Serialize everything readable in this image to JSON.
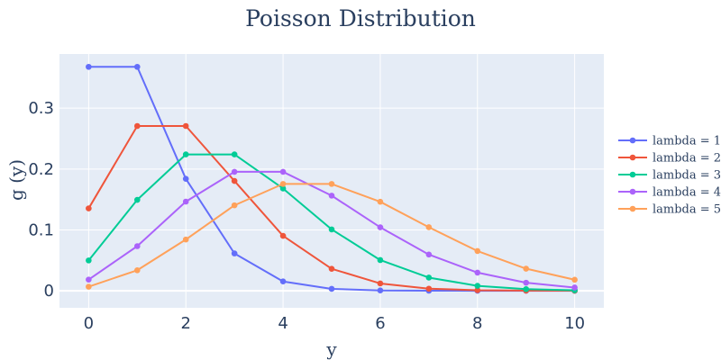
{
  "chart_data": {
    "type": "line",
    "title": "Poisson Distribution",
    "xlabel": "y",
    "ylabel": "g (y)",
    "x": [
      0,
      1,
      2,
      3,
      4,
      5,
      6,
      7,
      8,
      9,
      10
    ],
    "xlim": [
      -0.6,
      10.6
    ],
    "ylim": [
      -0.028,
      0.389
    ],
    "xticks": [
      0,
      2,
      4,
      6,
      8,
      10
    ],
    "yticks": [
      0,
      0.1,
      0.2,
      0.3
    ],
    "ytick_labels": [
      "0",
      "0.1",
      "0.2",
      "0.3"
    ],
    "grid": true,
    "legend_position": "right",
    "background": "#e5ecf6",
    "series": [
      {
        "name": "lambda = 1",
        "color": "#636efa",
        "values": [
          0.3679,
          0.3679,
          0.1839,
          0.0613,
          0.0153,
          0.0031,
          0.0005,
          0.0001,
          0.0,
          0.0,
          0.0
        ]
      },
      {
        "name": "lambda = 2",
        "color": "#ef553b",
        "values": [
          0.1353,
          0.2707,
          0.2707,
          0.1804,
          0.0902,
          0.0361,
          0.012,
          0.0034,
          0.0009,
          0.0002,
          0.0
        ]
      },
      {
        "name": "lambda = 3",
        "color": "#00cc96",
        "values": [
          0.0498,
          0.1494,
          0.224,
          0.224,
          0.168,
          0.1008,
          0.0504,
          0.0216,
          0.0081,
          0.0027,
          0.0008
        ]
      },
      {
        "name": "lambda = 4",
        "color": "#ab63fa",
        "values": [
          0.0183,
          0.0733,
          0.1465,
          0.1954,
          0.1954,
          0.1563,
          0.1042,
          0.0595,
          0.0298,
          0.0132,
          0.0053
        ]
      },
      {
        "name": "lambda = 5",
        "color": "#ffa15a",
        "values": [
          0.0067,
          0.0337,
          0.0842,
          0.1404,
          0.1755,
          0.1755,
          0.1462,
          0.1044,
          0.0653,
          0.0363,
          0.0181
        ]
      }
    ]
  }
}
